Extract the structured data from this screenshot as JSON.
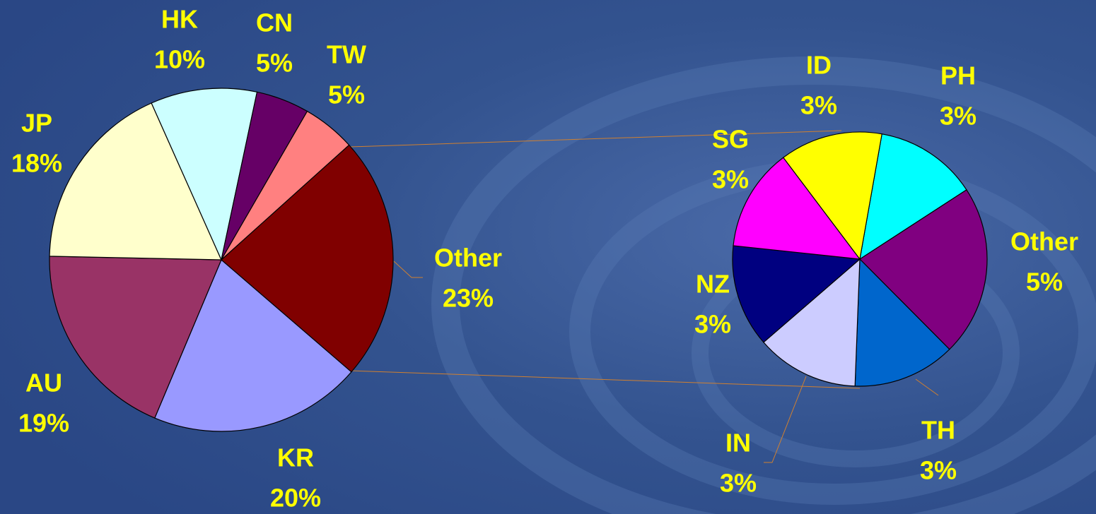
{
  "chart_data": [
    {
      "type": "pie",
      "categories": [
        "Other",
        "KR",
        "AU",
        "JP",
        "HK",
        "CN",
        "TW"
      ],
      "values": [
        23,
        20,
        19,
        18,
        10,
        5,
        5
      ],
      "value_labels": [
        "23%",
        "20%",
        "19%",
        "18%",
        "10%",
        "5%",
        "5%"
      ],
      "colors": [
        "#800000",
        "#9999ff",
        "#993366",
        "#ffffcc",
        "#ccffff",
        "#660066",
        "#ff8080"
      ]
    },
    {
      "type": "pie",
      "categories": [
        "PH",
        "Other",
        "TH",
        "IN",
        "NZ",
        "SG",
        "ID"
      ],
      "values": [
        3,
        5,
        3,
        3,
        3,
        3,
        3
      ],
      "value_labels": [
        "3%",
        "5%",
        "3%",
        "3%",
        "3%",
        "3%",
        "3%"
      ],
      "colors": [
        "#00ffff",
        "#800080",
        "#0066cc",
        "#ccccff",
        "#000080",
        "#ff00ff",
        "#ffff00"
      ]
    }
  ]
}
